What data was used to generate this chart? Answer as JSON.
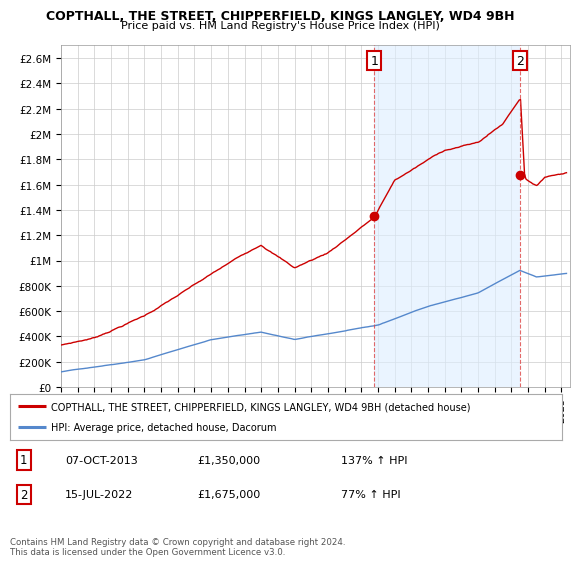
{
  "title": "COPTHALL, THE STREET, CHIPPERFIELD, KINGS LANGLEY, WD4 9BH",
  "subtitle": "Price paid vs. HM Land Registry's House Price Index (HPI)",
  "ylabel_ticks": [
    "£0",
    "£200K",
    "£400K",
    "£600K",
    "£800K",
    "£1M",
    "£1.2M",
    "£1.4M",
    "£1.6M",
    "£1.8M",
    "£2M",
    "£2.2M",
    "£2.4M",
    "£2.6M"
  ],
  "ytick_values": [
    0,
    200000,
    400000,
    600000,
    800000,
    1000000,
    1200000,
    1400000,
    1600000,
    1800000,
    2000000,
    2200000,
    2400000,
    2600000
  ],
  "ylim": [
    0,
    2700000
  ],
  "xlim_start": 1995.0,
  "xlim_end": 2025.5,
  "marker1_x": 2013.77,
  "marker1_y": 1350000,
  "marker2_x": 2022.54,
  "marker2_y": 1675000,
  "marker1_label": "1",
  "marker2_label": "2",
  "vline1_x": 2013.77,
  "vline2_x": 2022.54,
  "sale_color": "#cc0000",
  "hpi_color": "#5588cc",
  "shade_color": "#ddeeff",
  "legend_sale_label": "COPTHALL, THE STREET, CHIPPERFIELD, KINGS LANGLEY, WD4 9BH (detached house)",
  "legend_hpi_label": "HPI: Average price, detached house, Dacorum",
  "annotation1_date": "07-OCT-2013",
  "annotation1_price": "£1,350,000",
  "annotation1_hpi": "137% ↑ HPI",
  "annotation2_date": "15-JUL-2022",
  "annotation2_price": "£1,675,000",
  "annotation2_hpi": "77% ↑ HPI",
  "footer": "Contains HM Land Registry data © Crown copyright and database right 2024.\nThis data is licensed under the Open Government Licence v3.0.",
  "background_color": "#ffffff",
  "grid_color": "#cccccc"
}
